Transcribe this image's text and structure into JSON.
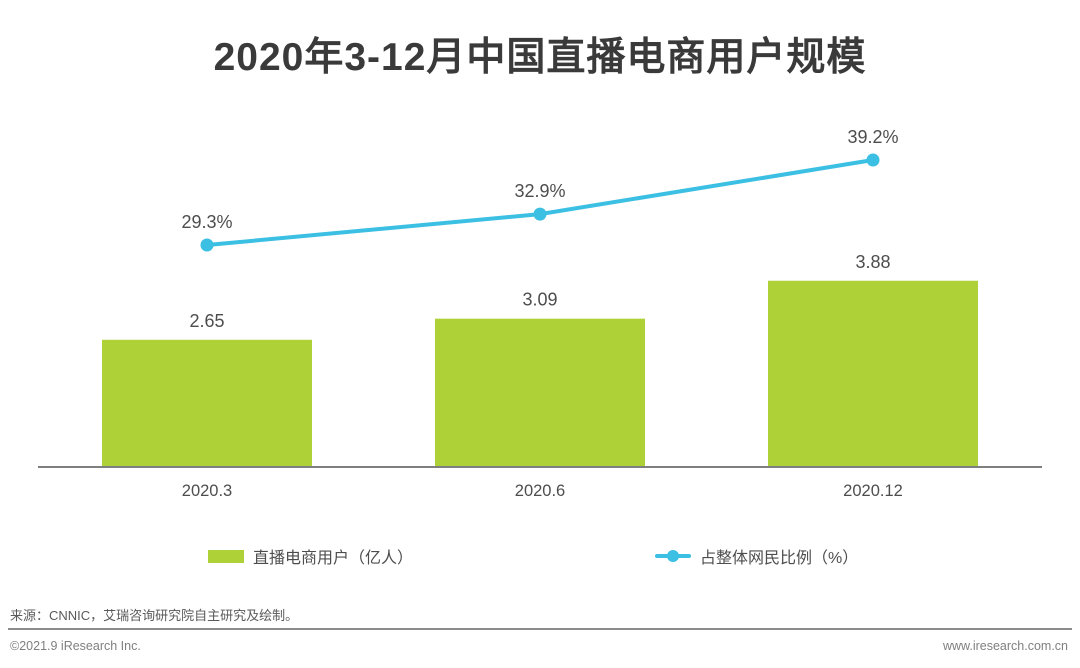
{
  "title": "2020年3-12月中国直播电商用户规模",
  "chart_data": {
    "type": "bar",
    "subtype": "bar-with-line-overlay",
    "categories": [
      "2020.3",
      "2020.6",
      "2020.12"
    ],
    "series": [
      {
        "name": "直播电商用户（亿人）",
        "type": "bar",
        "values": [
          2.65,
          3.09,
          3.88
        ],
        "labels": [
          "2.65",
          "3.09",
          "3.88"
        ],
        "color": "#AFD138"
      },
      {
        "name": "占整体网民比例（%）",
        "type": "line",
        "values": [
          29.3,
          32.9,
          39.2
        ],
        "labels": [
          "29.3%",
          "32.9%",
          "39.2%"
        ],
        "color": "#3BBFE3"
      }
    ],
    "xlabel": "",
    "ylabel": "",
    "grid": false,
    "legend_position": "bottom",
    "axis_color": "#7f7f7f",
    "label_color": "#4d4d4d"
  },
  "legend": {
    "bar_label": "直播电商用户（亿人）",
    "line_label": "占整体网民比例（%）"
  },
  "footer": {
    "source": "来源：CNNIC，艾瑞咨询研究院自主研究及绘制。",
    "copyright": "©2021.9 iResearch Inc.",
    "website": "www.iresearch.com.cn"
  },
  "colors": {
    "bar": "#AFD138",
    "line": "#3BBFE3",
    "title_text": "#3a3a3a",
    "label_text": "#4d4d4d",
    "axis": "#7f7f7f"
  }
}
